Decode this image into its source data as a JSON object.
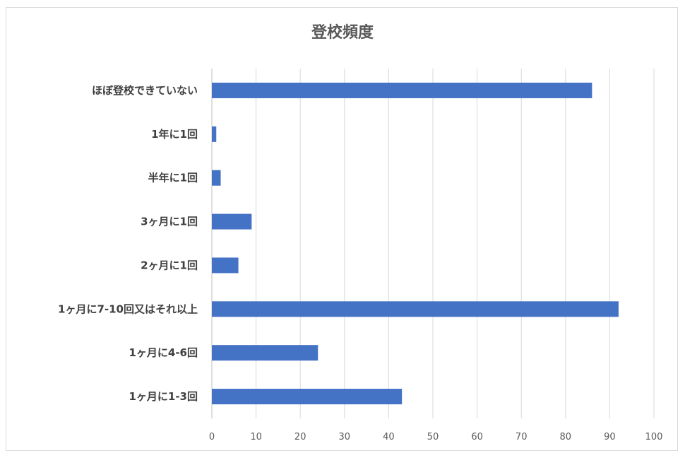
{
  "chart_data": {
    "type": "bar",
    "orientation": "horizontal",
    "title": "登校頻度",
    "categories": [
      "ほぼ登校できていない",
      "1年に1回",
      "半年に1回",
      "3ヶ月に1回",
      "2ヶ月に1回",
      "1ヶ月に7-10回又はそれ以上",
      "1ヶ月に4-6回",
      "1ヶ月に1-3回"
    ],
    "values": [
      86,
      1,
      2,
      9,
      6,
      92,
      24,
      43
    ],
    "xlim": [
      0,
      100
    ],
    "xticks": [
      0,
      10,
      20,
      30,
      40,
      50,
      60,
      70,
      80,
      90,
      100
    ],
    "xlabel": "",
    "ylabel": "",
    "grid": true,
    "legend": "none",
    "bar_color": "#4472c4"
  }
}
